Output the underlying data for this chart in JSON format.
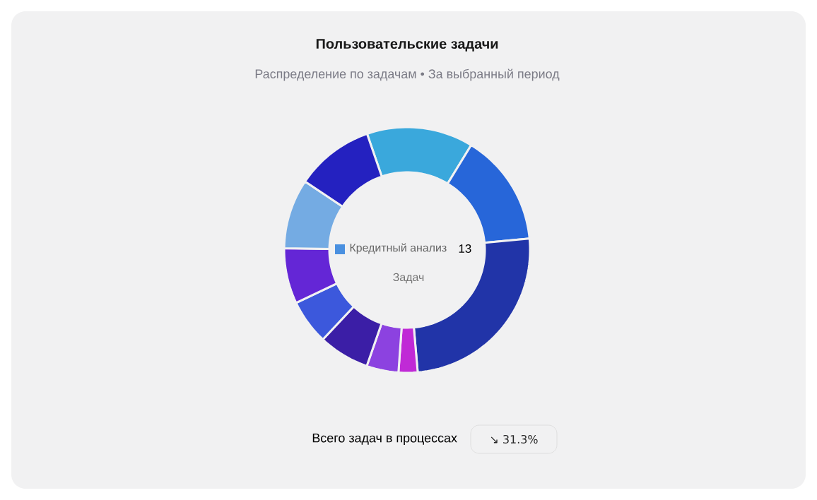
{
  "chart_data": {
    "type": "donut",
    "title": "Пользовательские задачи",
    "subtitle": "Распределение по задачам • За выбранный период",
    "categories": [
      null,
      null,
      null,
      null,
      null,
      null,
      null,
      null,
      null,
      null
    ],
    "values": [
      14.0,
      14.8,
      25.1,
      2.5,
      4.2,
      6.7,
      5.9,
      7.3,
      9.2,
      10.3
    ],
    "colors": [
      "#3aa8dc",
      "#2766d9",
      "#2134a8",
      "#c02ad6",
      "#8c42e0",
      "#3b1ea6",
      "#3c58dc",
      "#6426d6",
      "#74abe3",
      "#2421c0"
    ],
    "annotations": [
      "Кредитный анализ",
      "13",
      "Задач",
      "Всего задач в процессах",
      "↘ 31.3%"
    ]
  }
}
